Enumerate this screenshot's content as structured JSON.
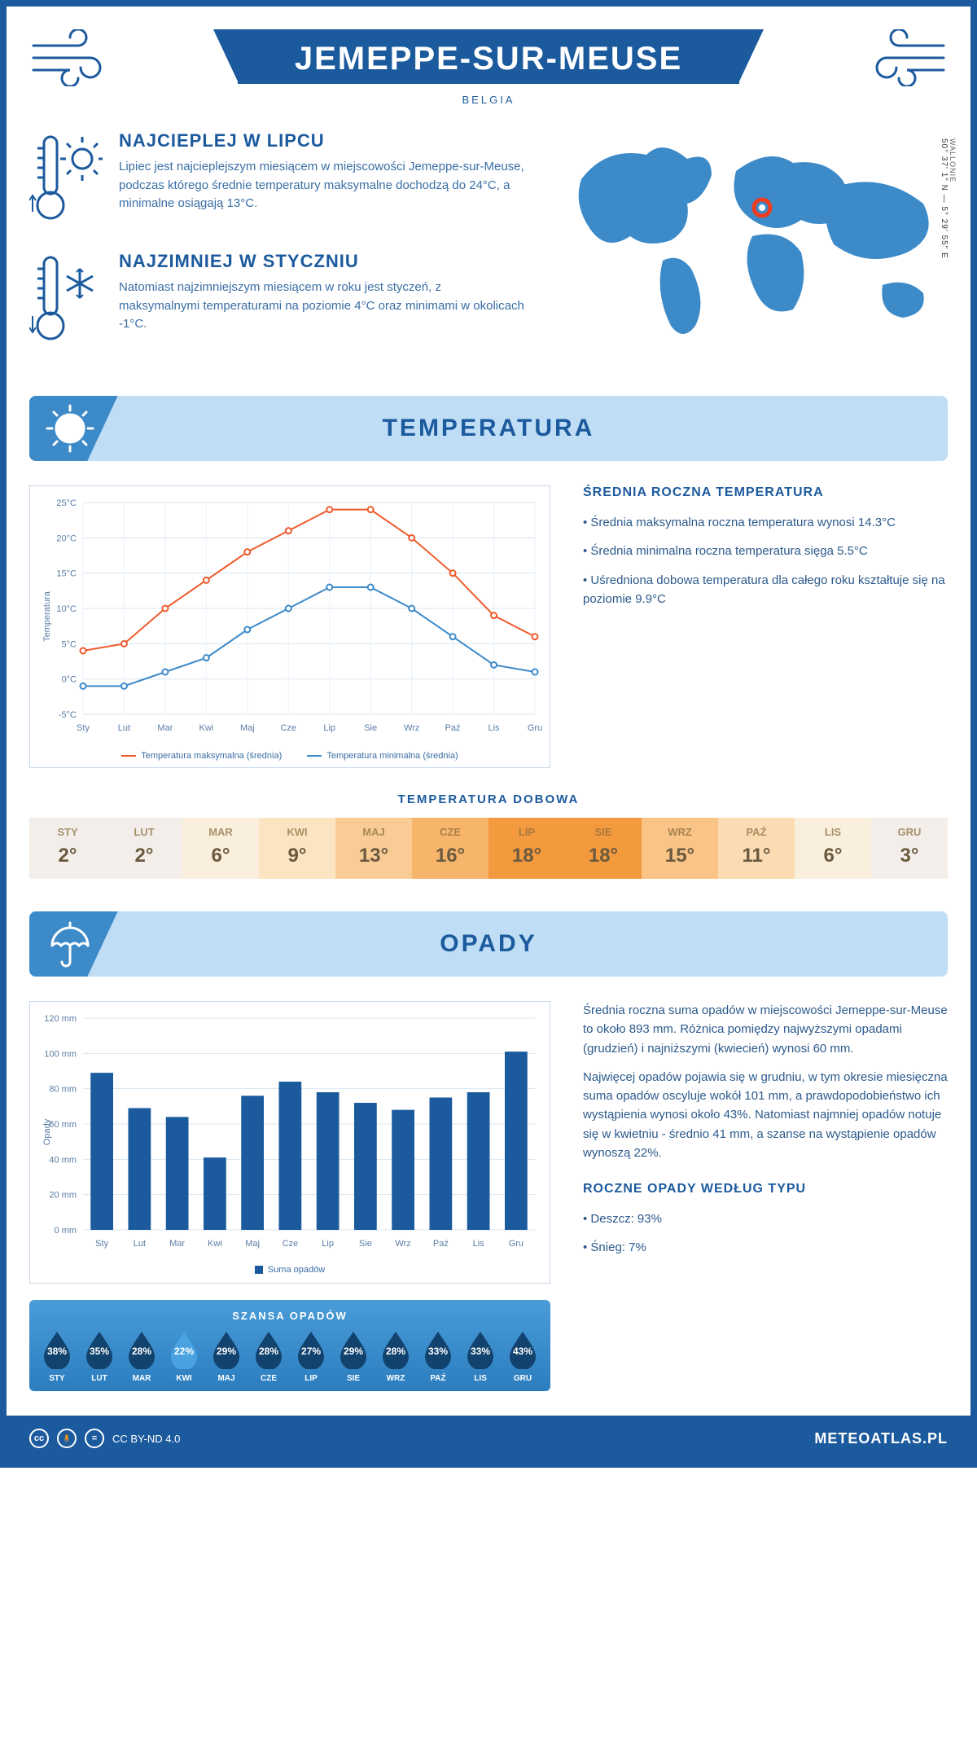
{
  "header": {
    "title": "JEMEPPE-SUR-MEUSE",
    "country": "BELGIA",
    "region": "WALLONIE",
    "coords": "50° 37' 1\" N — 5° 29' 55\" E"
  },
  "intro": {
    "hot": {
      "title": "NAJCIEPLEJ W LIPCU",
      "body": "Lipiec jest najcieplejszym miesiącem w miejscowości Jemeppe-sur-Meuse, podczas którego średnie temperatury maksymalne dochodzą do 24°C, a minimalne osiągają 13°C."
    },
    "cold": {
      "title": "NAJZIMNIEJ W STYCZNIU",
      "body": "Natomiast najzimniejszym miesiącem w roku jest styczeń, z maksymalnymi temperaturami na poziomie 4°C oraz minimami w okolicach -1°C."
    }
  },
  "colors": {
    "brand": "#1c5a9e",
    "brand_light": "#bfddf5",
    "brand_mid": "#3d8ac9",
    "series_max": "#ef5b2c",
    "series_min": "#3d8ac9",
    "marker_pin": "#ef3b1f",
    "map_fill": "#3d8ac9"
  },
  "temperature_section": {
    "heading": "TEMPERATURA",
    "chart": {
      "months": [
        "Sty",
        "Lut",
        "Mar",
        "Kwi",
        "Maj",
        "Cze",
        "Lip",
        "Sie",
        "Wrz",
        "Paź",
        "Lis",
        "Gru"
      ],
      "tmax": [
        4,
        5,
        10,
        14,
        18,
        21,
        24,
        24,
        20,
        15,
        9,
        6
      ],
      "tmin": [
        -1,
        -1,
        1,
        3,
        7,
        10,
        13,
        13,
        10,
        6,
        2,
        1
      ],
      "ylabel": "Temperatura",
      "ylim": [
        -5,
        25
      ],
      "ytick_step": 5,
      "y_suffix": "°C",
      "legend_max": "Temperatura maksymalna (średnia)",
      "legend_min": "Temperatura minimalna (średnia)"
    },
    "side_heading": "ŚREDNIA ROCZNA TEMPERATURA",
    "bullets": [
      "Średnia maksymalna roczna temperatura wynosi 14.3°C",
      "Średnia minimalna roczna temperatura sięga 5.5°C",
      "Uśredniona dobowa temperatura dla całego roku kształtuje się na poziomie 9.9°C"
    ],
    "daily_heading": "TEMPERATURA DOBOWA",
    "daily": {
      "months": [
        "STY",
        "LUT",
        "MAR",
        "KWI",
        "MAJ",
        "CZE",
        "LIP",
        "SIE",
        "WRZ",
        "PAŹ",
        "LIS",
        "GRU"
      ],
      "values": [
        2,
        2,
        6,
        9,
        13,
        16,
        18,
        18,
        15,
        11,
        6,
        3
      ],
      "cell_colors": [
        "#f3eee9",
        "#f3eee9",
        "#faeedc",
        "#fce4c2",
        "#f9cc96",
        "#f7b46b",
        "#f49a3e",
        "#f49a3e",
        "#f9c486",
        "#fbdcb2",
        "#faeedc",
        "#f3eee9"
      ]
    }
  },
  "precip_section": {
    "heading": "OPADY",
    "chart": {
      "months": [
        "Sty",
        "Lut",
        "Mar",
        "Kwi",
        "Maj",
        "Cze",
        "Lip",
        "Sie",
        "Wrz",
        "Paź",
        "Lis",
        "Gru"
      ],
      "values": [
        89,
        69,
        64,
        41,
        76,
        84,
        78,
        72,
        68,
        75,
        78,
        101
      ],
      "ylabel": "Opady",
      "ylim": [
        0,
        120
      ],
      "ytick_step": 20,
      "y_suffix": " mm",
      "legend": "Suma opadów",
      "bar_color": "#1c5a9e"
    },
    "paragraphs": [
      "Średnia roczna suma opadów w miejscowości Jemeppe-sur-Meuse to około 893 mm. Różnica pomiędzy najwyższymi opadami (grudzień) i najniższymi (kwiecień) wynosi 60 mm.",
      "Najwięcej opadów pojawia się w grudniu, w tym okresie miesięczna suma opadów oscyluje wokół 101 mm, a prawdopodobieństwo ich wystąpienia wynosi około 43%. Natomiast najmniej opadów notuje się w kwietniu - średnio 41 mm, a szanse na wystąpienie opadów wynoszą 22%."
    ],
    "chance": {
      "heading": "SZANSA OPADÓW",
      "months": [
        "STY",
        "LUT",
        "MAR",
        "KWI",
        "MAJ",
        "CZE",
        "LIP",
        "SIE",
        "WRZ",
        "PAŹ",
        "LIS",
        "GRU"
      ],
      "values": [
        38,
        35,
        28,
        22,
        29,
        28,
        27,
        29,
        28,
        33,
        33,
        43
      ],
      "drop_dark": "#12436f",
      "drop_light": "#4aa3e0"
    },
    "by_type": {
      "heading": "ROCZNE OPADY WEDŁUG TYPU",
      "items": [
        "Deszcz: 93%",
        "Śnieg: 7%"
      ]
    }
  },
  "footer": {
    "license": "CC BY-ND 4.0",
    "site": "METEOATLAS.PL"
  }
}
